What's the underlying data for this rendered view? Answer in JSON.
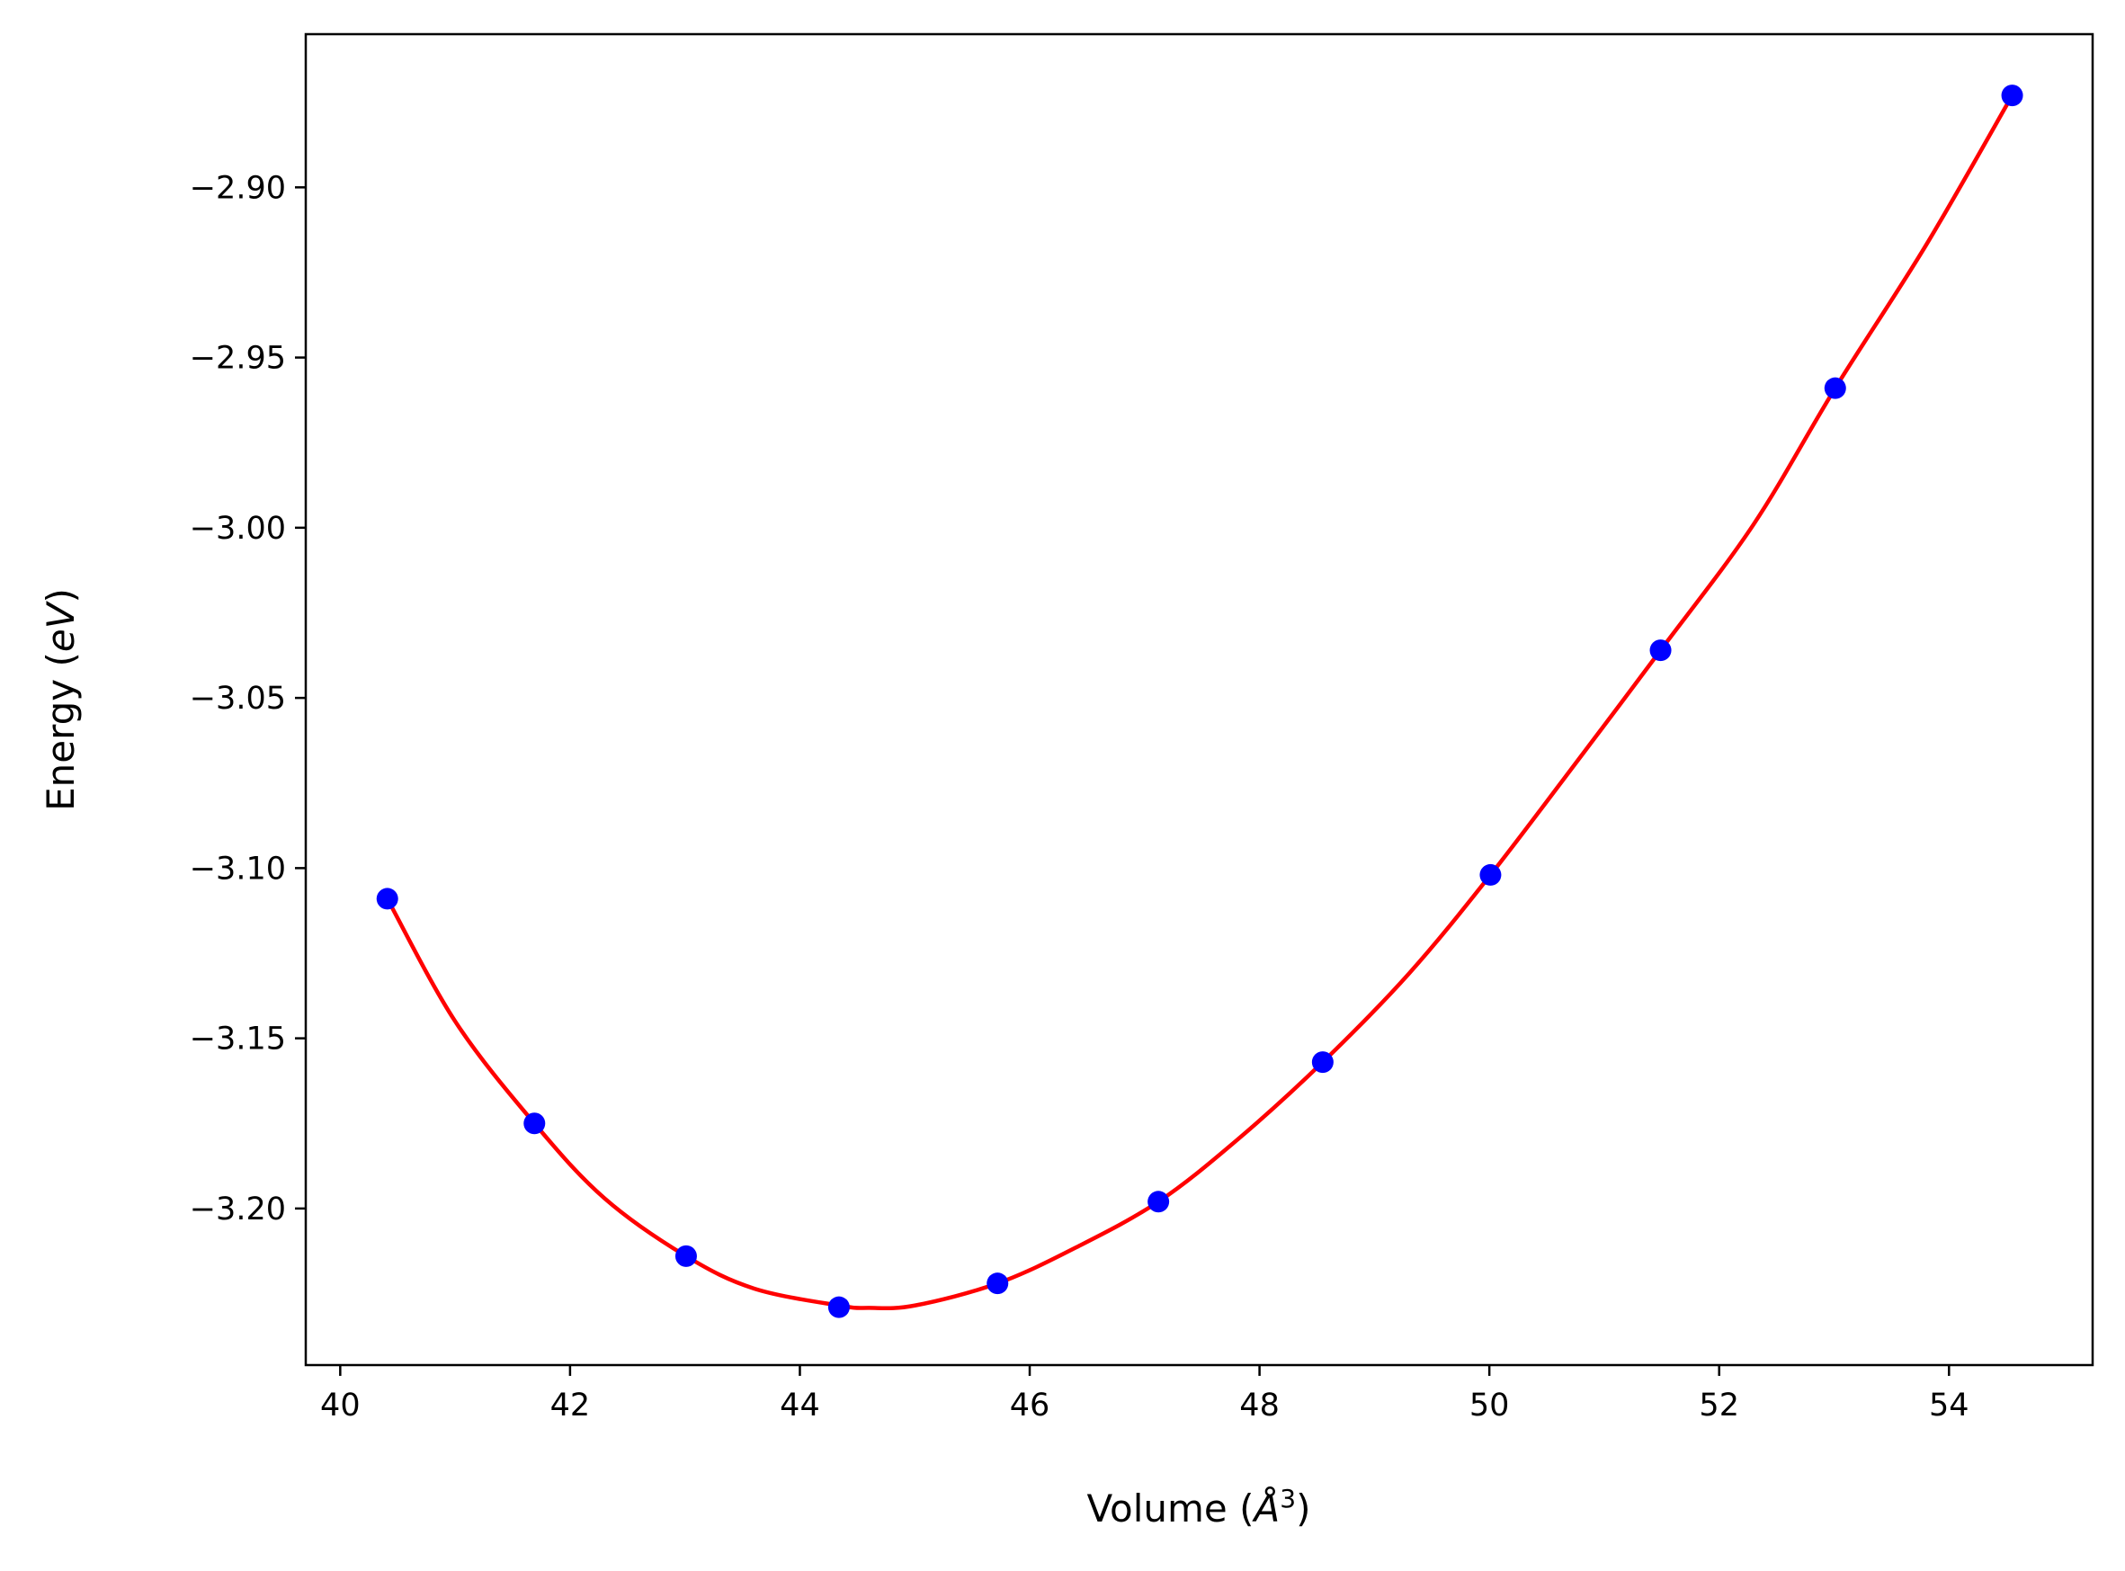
{
  "chart_data": {
    "type": "scatter",
    "title": "",
    "xlabel_text": "Volume (",
    "xlabel_italic": "Å",
    "xlabel_sup": "3",
    "xlabel_close": ")",
    "ylabel_text": "Energy (",
    "ylabel_italic": "eV",
    "ylabel_close": ")",
    "xlim": [
      39.7,
      55.25
    ],
    "ylim": [
      -3.246,
      -2.855
    ],
    "xticks": [
      40,
      42,
      44,
      46,
      48,
      50,
      52,
      54
    ],
    "xtick_labels": [
      "40",
      "42",
      "44",
      "46",
      "48",
      "50",
      "52",
      "54"
    ],
    "yticks": [
      -2.9,
      -2.95,
      -3.0,
      -3.05,
      -3.1,
      -3.15,
      -3.2
    ],
    "ytick_labels": [
      "−2.90",
      "−2.95",
      "−3.00",
      "−3.05",
      "−3.10",
      "−3.15",
      "−3.20"
    ],
    "grid": false,
    "series": [
      {
        "kind": "points",
        "color": "#0000ff",
        "x": [
          40.41,
          41.69,
          43.01,
          44.34,
          45.72,
          47.12,
          48.55,
          50.01,
          51.49,
          53.01,
          54.55
        ],
        "y": [
          -3.109,
          -3.175,
          -3.214,
          -3.229,
          -3.222,
          -3.198,
          -3.157,
          -3.102,
          -3.036,
          -2.959,
          -2.873
        ]
      },
      {
        "kind": "fit-curve",
        "color": "#ff0000",
        "x": [
          40.41,
          41.0,
          41.69,
          42.3,
          43.01,
          43.6,
          44.34,
          44.6,
          45.0,
          45.72,
          46.4,
          47.12,
          47.8,
          48.55,
          49.3,
          50.01,
          50.8,
          51.49,
          52.3,
          53.01,
          53.8,
          54.55
        ],
        "y": [
          -3.109,
          -3.145,
          -3.175,
          -3.197,
          -3.214,
          -3.2235,
          -3.2285,
          -3.2292,
          -3.2285,
          -3.222,
          -3.2115,
          -3.198,
          -3.18,
          -3.157,
          -3.131,
          -3.102,
          -3.067,
          -3.036,
          -2.999,
          -2.959,
          -2.917,
          -2.873
        ]
      }
    ]
  }
}
